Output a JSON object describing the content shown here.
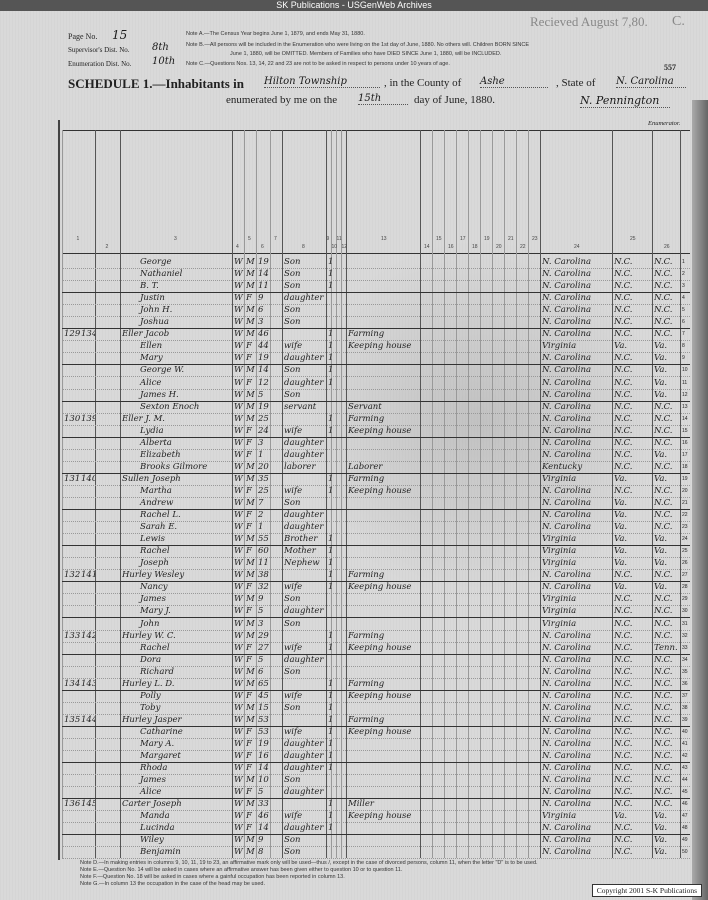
{
  "banner": "SK Publications - USGenWeb Archives",
  "header": {
    "page_label": "Page No.",
    "page_value": "15",
    "supervisor_label": "Supervisor's Dist. No.",
    "supervisor_value": "8th",
    "enumeration_label": "Enumeration Dist. No.",
    "enumeration_value": "10th",
    "note_a": "Note A.—The Census Year begins June 1, 1879, and ends May 31, 1880.",
    "note_b1": "Note B.—All persons will be included in the Enumeration who were living on the 1st day of June, 1880. No others will. Children BORN SINCE",
    "note_b2": "June 1, 1880, will be OMITTED. Members of Families who have DIED SINCE June 1, 1880, will be INCLUDED.",
    "note_c": "Note C.—Questions Nos. 13, 14, 22 and 23 are not to be asked in respect to persons under 10 years of age.",
    "received": "Recieved August 7,80.",
    "corner_letter": "C.",
    "page_stamp": "557",
    "schedule_prefix": "SCHEDULE 1.—Inhabitants in",
    "township": "Hilton Township",
    "county_label": ", in the County of",
    "county": "Ashe",
    "state_label": ", State of",
    "state": "N. Carolina",
    "enumerated_label": "enumerated by me on the",
    "day": "15th",
    "date_suffix": "day of June, 1880.",
    "enumerator_signature": "N. Pennington",
    "enumerator_label": "Enumerator."
  },
  "column_numbers": [
    "1",
    "2",
    "3",
    "4",
    "5",
    "6",
    "7",
    "8",
    "9",
    "10",
    "11",
    "12",
    "13",
    "14",
    "15",
    "16",
    "17",
    "18",
    "19",
    "20",
    "21",
    "22",
    "23",
    "24",
    "25",
    "26"
  ],
  "rows": [
    {
      "n": "1",
      "dw": "",
      "fam": "",
      "name": "George",
      "c": "W",
      "s": "M",
      "a": "19",
      "rel": "Son",
      "civ": "1",
      "occ": "",
      "bp": "N. Carolina",
      "fb": "N.C.",
      "mb": "N.C."
    },
    {
      "n": "2",
      "dw": "",
      "fam": "",
      "name": "Nathaniel",
      "c": "W",
      "s": "M",
      "a": "14",
      "rel": "Son",
      "civ": "1",
      "occ": "",
      "bp": "N. Carolina",
      "fb": "N.C.",
      "mb": "N.C."
    },
    {
      "n": "3",
      "dw": "",
      "fam": "",
      "name": "B. T.",
      "c": "W",
      "s": "M",
      "a": "11",
      "rel": "Son",
      "civ": "1",
      "occ": "",
      "bp": "N. Carolina",
      "fb": "N.C.",
      "mb": "N.C."
    },
    {
      "n": "4",
      "dw": "",
      "fam": "",
      "name": "Justin",
      "c": "W",
      "s": "F",
      "a": "9",
      "rel": "daughter",
      "civ": "",
      "occ": "",
      "bp": "N. Carolina",
      "fb": "N.C.",
      "mb": "N.C."
    },
    {
      "n": "5",
      "dw": "",
      "fam": "",
      "name": "John H.",
      "c": "W",
      "s": "M",
      "a": "6",
      "rel": "Son",
      "civ": "",
      "occ": "",
      "bp": "N. Carolina",
      "fb": "N.C.",
      "mb": "N.C."
    },
    {
      "n": "6",
      "dw": "",
      "fam": "",
      "name": "Joshua",
      "c": "W",
      "s": "M",
      "a": "3",
      "rel": "Son",
      "civ": "",
      "occ": "",
      "bp": "N. Carolina",
      "fb": "N.C.",
      "mb": "N.C."
    },
    {
      "n": "7",
      "dw": "129",
      "fam": "134",
      "name": "Eller Jacob",
      "c": "W",
      "s": "M",
      "a": "46",
      "rel": "",
      "civ": "1",
      "occ": "Farming",
      "bp": "N. Carolina",
      "fb": "N.C.",
      "mb": "N.C."
    },
    {
      "n": "8",
      "dw": "",
      "fam": "",
      "name": "Ellen",
      "c": "W",
      "s": "F",
      "a": "44",
      "rel": "wife",
      "civ": "1",
      "occ": "Keeping house",
      "bp": "Virginia",
      "fb": "Va.",
      "mb": "Va."
    },
    {
      "n": "9",
      "dw": "",
      "fam": "",
      "name": "Mary",
      "c": "W",
      "s": "F",
      "a": "19",
      "rel": "daughter",
      "civ": "1",
      "occ": "",
      "bp": "N. Carolina",
      "fb": "N.C.",
      "mb": "Va."
    },
    {
      "n": "10",
      "dw": "",
      "fam": "",
      "name": "George W.",
      "c": "W",
      "s": "M",
      "a": "14",
      "rel": "Son",
      "civ": "1",
      "occ": "",
      "bp": "N. Carolina",
      "fb": "N.C.",
      "mb": "Va."
    },
    {
      "n": "11",
      "dw": "",
      "fam": "",
      "name": "Alice",
      "c": "W",
      "s": "F",
      "a": "12",
      "rel": "daughter",
      "civ": "1",
      "occ": "",
      "bp": "N. Carolina",
      "fb": "N.C.",
      "mb": "Va."
    },
    {
      "n": "12",
      "dw": "",
      "fam": "",
      "name": "James H.",
      "c": "W",
      "s": "M",
      "a": "5",
      "rel": "Son",
      "civ": "",
      "occ": "",
      "bp": "N. Carolina",
      "fb": "N.C.",
      "mb": "Va."
    },
    {
      "n": "13",
      "dw": "",
      "fam": "",
      "name": "Sexton Enoch",
      "c": "W",
      "s": "M",
      "a": "19",
      "rel": "servant",
      "civ": "",
      "occ": "Servant",
      "bp": "N. Carolina",
      "fb": "N.C.",
      "mb": "N.C."
    },
    {
      "n": "14",
      "dw": "130",
      "fam": "139",
      "name": "Eller J. M.",
      "c": "W",
      "s": "M",
      "a": "25",
      "rel": "",
      "civ": "1",
      "occ": "Farming",
      "bp": "N. Carolina",
      "fb": "N.C.",
      "mb": "N.C."
    },
    {
      "n": "15",
      "dw": "",
      "fam": "",
      "name": "Lydia",
      "c": "W",
      "s": "F",
      "a": "24",
      "rel": "wife",
      "civ": "1",
      "occ": "Keeping house",
      "bp": "N. Carolina",
      "fb": "N.C.",
      "mb": "N.C."
    },
    {
      "n": "16",
      "dw": "",
      "fam": "",
      "name": "Alberta",
      "c": "W",
      "s": "F",
      "a": "3",
      "rel": "daughter",
      "civ": "",
      "occ": "",
      "bp": "N. Carolina",
      "fb": "N.C.",
      "mb": "N.C."
    },
    {
      "n": "17",
      "dw": "",
      "fam": "",
      "name": "Elizabeth",
      "c": "W",
      "s": "F",
      "a": "1",
      "rel": "daughter",
      "civ": "",
      "occ": "",
      "bp": "N. Carolina",
      "fb": "N.C.",
      "mb": "Va."
    },
    {
      "n": "18",
      "dw": "",
      "fam": "",
      "name": "Brooks Gilmore",
      "c": "W",
      "s": "M",
      "a": "20",
      "rel": "laborer",
      "civ": "",
      "occ": "Laborer",
      "bp": "Kentucky",
      "fb": "N.C.",
      "mb": "N.C."
    },
    {
      "n": "19",
      "dw": "131",
      "fam": "140",
      "name": "Sullen Joseph",
      "c": "W",
      "s": "M",
      "a": "35",
      "rel": "",
      "civ": "1",
      "occ": "Farming",
      "bp": "Virginia",
      "fb": "Va.",
      "mb": "Va."
    },
    {
      "n": "20",
      "dw": "",
      "fam": "",
      "name": "Martha",
      "c": "W",
      "s": "F",
      "a": "25",
      "rel": "wife",
      "civ": "1",
      "occ": "Keeping house",
      "bp": "N. Carolina",
      "fb": "N.C.",
      "mb": "N.C."
    },
    {
      "n": "21",
      "dw": "",
      "fam": "",
      "name": "Andrew",
      "c": "W",
      "s": "M",
      "a": "7",
      "rel": "Son",
      "civ": "",
      "occ": "",
      "bp": "N. Carolina",
      "fb": "Va.",
      "mb": "N.C."
    },
    {
      "n": "22",
      "dw": "",
      "fam": "",
      "name": "Rachel L.",
      "c": "W",
      "s": "F",
      "a": "2",
      "rel": "daughter",
      "civ": "",
      "occ": "",
      "bp": "N. Carolina",
      "fb": "Va.",
      "mb": "N.C."
    },
    {
      "n": "23",
      "dw": "",
      "fam": "",
      "name": "Sarah E.",
      "c": "W",
      "s": "F",
      "a": "1",
      "rel": "daughter",
      "civ": "",
      "occ": "",
      "bp": "N. Carolina",
      "fb": "Va.",
      "mb": "N.C."
    },
    {
      "n": "24",
      "dw": "",
      "fam": "",
      "name": "Lewis",
      "c": "W",
      "s": "M",
      "a": "55",
      "rel": "Brother",
      "civ": "1",
      "occ": "",
      "bp": "Virginia",
      "fb": "Va.",
      "mb": "Va."
    },
    {
      "n": "25",
      "dw": "",
      "fam": "",
      "name": "Rachel",
      "c": "W",
      "s": "F",
      "a": "60",
      "rel": "Mother",
      "civ": "1",
      "occ": "",
      "bp": "Virginia",
      "fb": "Va.",
      "mb": "Va."
    },
    {
      "n": "26",
      "dw": "",
      "fam": "",
      "name": "Joseph",
      "c": "W",
      "s": "M",
      "a": "11",
      "rel": "Nephew",
      "civ": "1",
      "occ": "",
      "bp": "Virginia",
      "fb": "Va.",
      "mb": "Va."
    },
    {
      "n": "27",
      "dw": "132",
      "fam": "141",
      "name": "Hurley Wesley",
      "c": "W",
      "s": "M",
      "a": "38",
      "rel": "",
      "civ": "1",
      "occ": "Farming",
      "bp": "N. Carolina",
      "fb": "N.C.",
      "mb": "N.C."
    },
    {
      "n": "28",
      "dw": "",
      "fam": "",
      "name": "Nancy",
      "c": "W",
      "s": "F",
      "a": "32",
      "rel": "wife",
      "civ": "1",
      "occ": "Keeping house",
      "bp": "N. Carolina",
      "fb": "Va.",
      "mb": "Va."
    },
    {
      "n": "29",
      "dw": "",
      "fam": "",
      "name": "James",
      "c": "W",
      "s": "M",
      "a": "9",
      "rel": "Son",
      "civ": "",
      "occ": "",
      "bp": "Virginia",
      "fb": "N.C.",
      "mb": "N.C."
    },
    {
      "n": "30",
      "dw": "",
      "fam": "",
      "name": "Mary J.",
      "c": "W",
      "s": "F",
      "a": "5",
      "rel": "daughter",
      "civ": "",
      "occ": "",
      "bp": "Virginia",
      "fb": "N.C.",
      "mb": "N.C."
    },
    {
      "n": "31",
      "dw": "",
      "fam": "",
      "name": "John",
      "c": "W",
      "s": "M",
      "a": "3",
      "rel": "Son",
      "civ": "",
      "occ": "",
      "bp": "Virginia",
      "fb": "N.C.",
      "mb": "N.C."
    },
    {
      "n": "32",
      "dw": "133",
      "fam": "142",
      "name": "Hurley W. C.",
      "c": "W",
      "s": "M",
      "a": "29",
      "rel": "",
      "civ": "1",
      "occ": "Farming",
      "bp": "N. Carolina",
      "fb": "N.C.",
      "mb": "N.C."
    },
    {
      "n": "33",
      "dw": "",
      "fam": "",
      "name": "Rachel",
      "c": "W",
      "s": "F",
      "a": "27",
      "rel": "wife",
      "civ": "1",
      "occ": "Keeping house",
      "bp": "N. Carolina",
      "fb": "N.C.",
      "mb": "Tenn."
    },
    {
      "n": "34",
      "dw": "",
      "fam": "",
      "name": "Dora",
      "c": "W",
      "s": "F",
      "a": "5",
      "rel": "daughter",
      "civ": "",
      "occ": "",
      "bp": "N. Carolina",
      "fb": "N.C.",
      "mb": "N.C."
    },
    {
      "n": "35",
      "dw": "",
      "fam": "",
      "name": "Richard",
      "c": "W",
      "s": "M",
      "a": "6",
      "rel": "Son",
      "civ": "",
      "occ": "",
      "bp": "N. Carolina",
      "fb": "N.C.",
      "mb": "N.C."
    },
    {
      "n": "36",
      "dw": "134",
      "fam": "143",
      "name": "Hurley L. D.",
      "c": "W",
      "s": "M",
      "a": "65",
      "rel": "",
      "civ": "1",
      "occ": "Farming",
      "bp": "N. Carolina",
      "fb": "N.C.",
      "mb": "N.C."
    },
    {
      "n": "37",
      "dw": "",
      "fam": "",
      "name": "Polly",
      "c": "W",
      "s": "F",
      "a": "45",
      "rel": "wife",
      "civ": "1",
      "occ": "Keeping house",
      "bp": "N. Carolina",
      "fb": "N.C.",
      "mb": "N.C."
    },
    {
      "n": "38",
      "dw": "",
      "fam": "",
      "name": "Toby",
      "c": "W",
      "s": "M",
      "a": "15",
      "rel": "Son",
      "civ": "1",
      "occ": "",
      "bp": "N. Carolina",
      "fb": "N.C.",
      "mb": "N.C."
    },
    {
      "n": "39",
      "dw": "135",
      "fam": "144",
      "name": "Hurley Jasper",
      "c": "W",
      "s": "M",
      "a": "53",
      "rel": "",
      "civ": "1",
      "occ": "Farming",
      "bp": "N. Carolina",
      "fb": "N.C.",
      "mb": "N.C."
    },
    {
      "n": "40",
      "dw": "",
      "fam": "",
      "name": "Catharine",
      "c": "W",
      "s": "F",
      "a": "53",
      "rel": "wife",
      "civ": "1",
      "occ": "Keeping house",
      "bp": "N. Carolina",
      "fb": "N.C.",
      "mb": "N.C."
    },
    {
      "n": "41",
      "dw": "",
      "fam": "",
      "name": "Mary A.",
      "c": "W",
      "s": "F",
      "a": "19",
      "rel": "daughter",
      "civ": "1",
      "occ": "",
      "bp": "N. Carolina",
      "fb": "N.C.",
      "mb": "N.C."
    },
    {
      "n": "42",
      "dw": "",
      "fam": "",
      "name": "Margaret",
      "c": "W",
      "s": "F",
      "a": "16",
      "rel": "daughter",
      "civ": "1",
      "occ": "",
      "bp": "N. Carolina",
      "fb": "N.C.",
      "mb": "N.C."
    },
    {
      "n": "43",
      "dw": "",
      "fam": "",
      "name": "Rhoda",
      "c": "W",
      "s": "F",
      "a": "14",
      "rel": "daughter",
      "civ": "1",
      "occ": "",
      "bp": "N. Carolina",
      "fb": "N.C.",
      "mb": "N.C."
    },
    {
      "n": "44",
      "dw": "",
      "fam": "",
      "name": "James",
      "c": "W",
      "s": "M",
      "a": "10",
      "rel": "Son",
      "civ": "",
      "occ": "",
      "bp": "N. Carolina",
      "fb": "N.C.",
      "mb": "N.C."
    },
    {
      "n": "45",
      "dw": "",
      "fam": "",
      "name": "Alice",
      "c": "W",
      "s": "F",
      "a": "5",
      "rel": "daughter",
      "civ": "",
      "occ": "",
      "bp": "N. Carolina",
      "fb": "N.C.",
      "mb": "N.C."
    },
    {
      "n": "46",
      "dw": "136",
      "fam": "145",
      "name": "Carter Joseph",
      "c": "W",
      "s": "M",
      "a": "33",
      "rel": "",
      "civ": "1",
      "occ": "Miller",
      "bp": "N. Carolina",
      "fb": "N.C.",
      "mb": "N.C."
    },
    {
      "n": "47",
      "dw": "",
      "fam": "",
      "name": "Manda",
      "c": "W",
      "s": "F",
      "a": "46",
      "rel": "wife",
      "civ": "1",
      "occ": "Keeping house",
      "bp": "Virginia",
      "fb": "Va.",
      "mb": "Va."
    },
    {
      "n": "48",
      "dw": "",
      "fam": "",
      "name": "Lucinda",
      "c": "W",
      "s": "F",
      "a": "14",
      "rel": "daughter",
      "civ": "1",
      "occ": "",
      "bp": "N. Carolina",
      "fb": "N.C.",
      "mb": "Va."
    },
    {
      "n": "49",
      "dw": "",
      "fam": "",
      "name": "Wiley",
      "c": "W",
      "s": "M",
      "a": "9",
      "rel": "Son",
      "civ": "",
      "occ": "",
      "bp": "N. Carolina",
      "fb": "N.C.",
      "mb": "Va."
    },
    {
      "n": "50",
      "dw": "",
      "fam": "",
      "name": "Benjamin",
      "c": "W",
      "s": "M",
      "a": "8",
      "rel": "Son",
      "civ": "",
      "occ": "",
      "bp": "N. Carolina",
      "fb": "N.C.",
      "mb": "Va."
    }
  ],
  "separator_after_rows": [
    3,
    6,
    9,
    12,
    15,
    18,
    21,
    24,
    27,
    30,
    33,
    36,
    39,
    42,
    45,
    48
  ],
  "footer": {
    "note_d": "Note D.—In making entries in columns 9, 10, 11, 19 to 23, an affirmative mark only will be used—thus /, except in the case of divorced persons, column 11, when the letter \"D\" is to be used.",
    "note_e": "Note E.—Question No. 14 will be asked in cases where an affirmative answer has been given either to question 10 or to question 11.",
    "note_f": "Note F.—Question No. 18 will be asked in cases where a gainful occupation has been reported in column 13.",
    "note_g": "Note G.—In column 13 the occupation in the case of the head may be used.",
    "copyright": "Copyright 2001 S-K Publications"
  }
}
